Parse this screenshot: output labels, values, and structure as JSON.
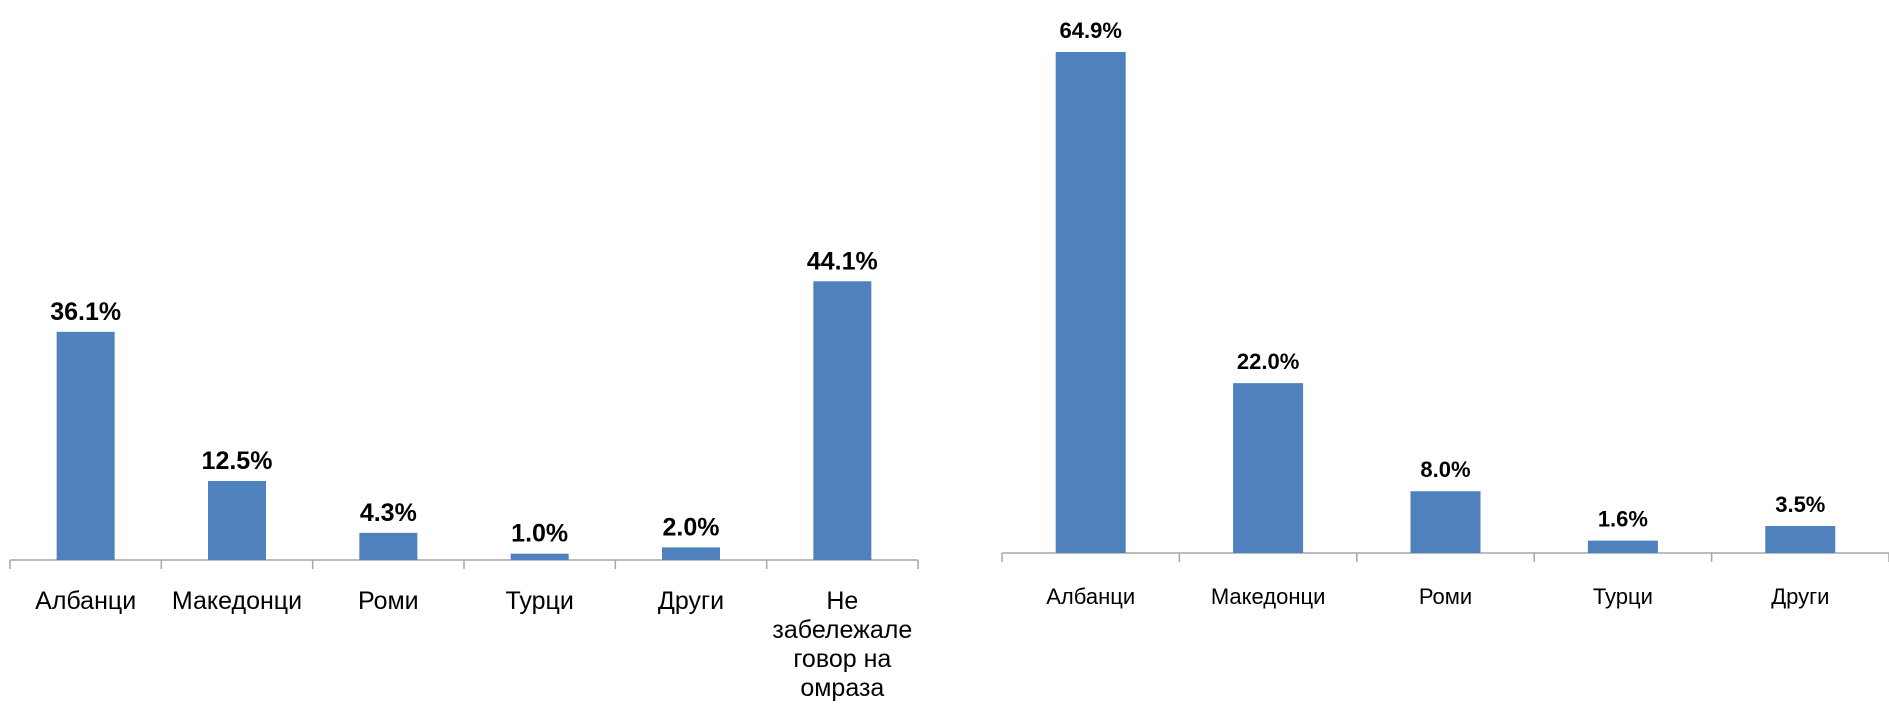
{
  "chart_data": [
    {
      "type": "bar",
      "categories": [
        "Албанци",
        "Македонци",
        "Роми",
        "Турци",
        "Други",
        "Не забележале говор на омраза"
      ],
      "category_lines": [
        [
          "Албанци"
        ],
        [
          "Македонци"
        ],
        [
          "Роми"
        ],
        [
          "Турци"
        ],
        [
          "Други"
        ],
        [
          "Не",
          "забележале",
          "говор на",
          "омраза"
        ]
      ],
      "values": [
        36.1,
        12.5,
        4.3,
        1.0,
        2.0,
        44.1
      ],
      "value_labels": [
        "36.1%",
        "12.5%",
        "4.3%",
        "1.0%",
        "2.0%",
        "44.1%"
      ],
      "unit": "%",
      "bar_color": "#4f81bd",
      "axis_color": "#a6a6a6",
      "grid": false,
      "legend": "none"
    },
    {
      "type": "bar",
      "categories": [
        "Албанци",
        "Македонци",
        "Роми",
        "Турци",
        "Други"
      ],
      "category_lines": [
        [
          "Албанци"
        ],
        [
          "Македонци"
        ],
        [
          "Роми"
        ],
        [
          "Турци"
        ],
        [
          "Други"
        ]
      ],
      "values": [
        64.9,
        22.0,
        8.0,
        1.6,
        3.5
      ],
      "value_labels": [
        "64.9%",
        "22.0%",
        "8.0%",
        "1.6%",
        "3.5%"
      ],
      "unit": "%",
      "bar_color": "#4f81bd",
      "axis_color": "#a6a6a6",
      "grid": false,
      "legend": "none"
    }
  ]
}
